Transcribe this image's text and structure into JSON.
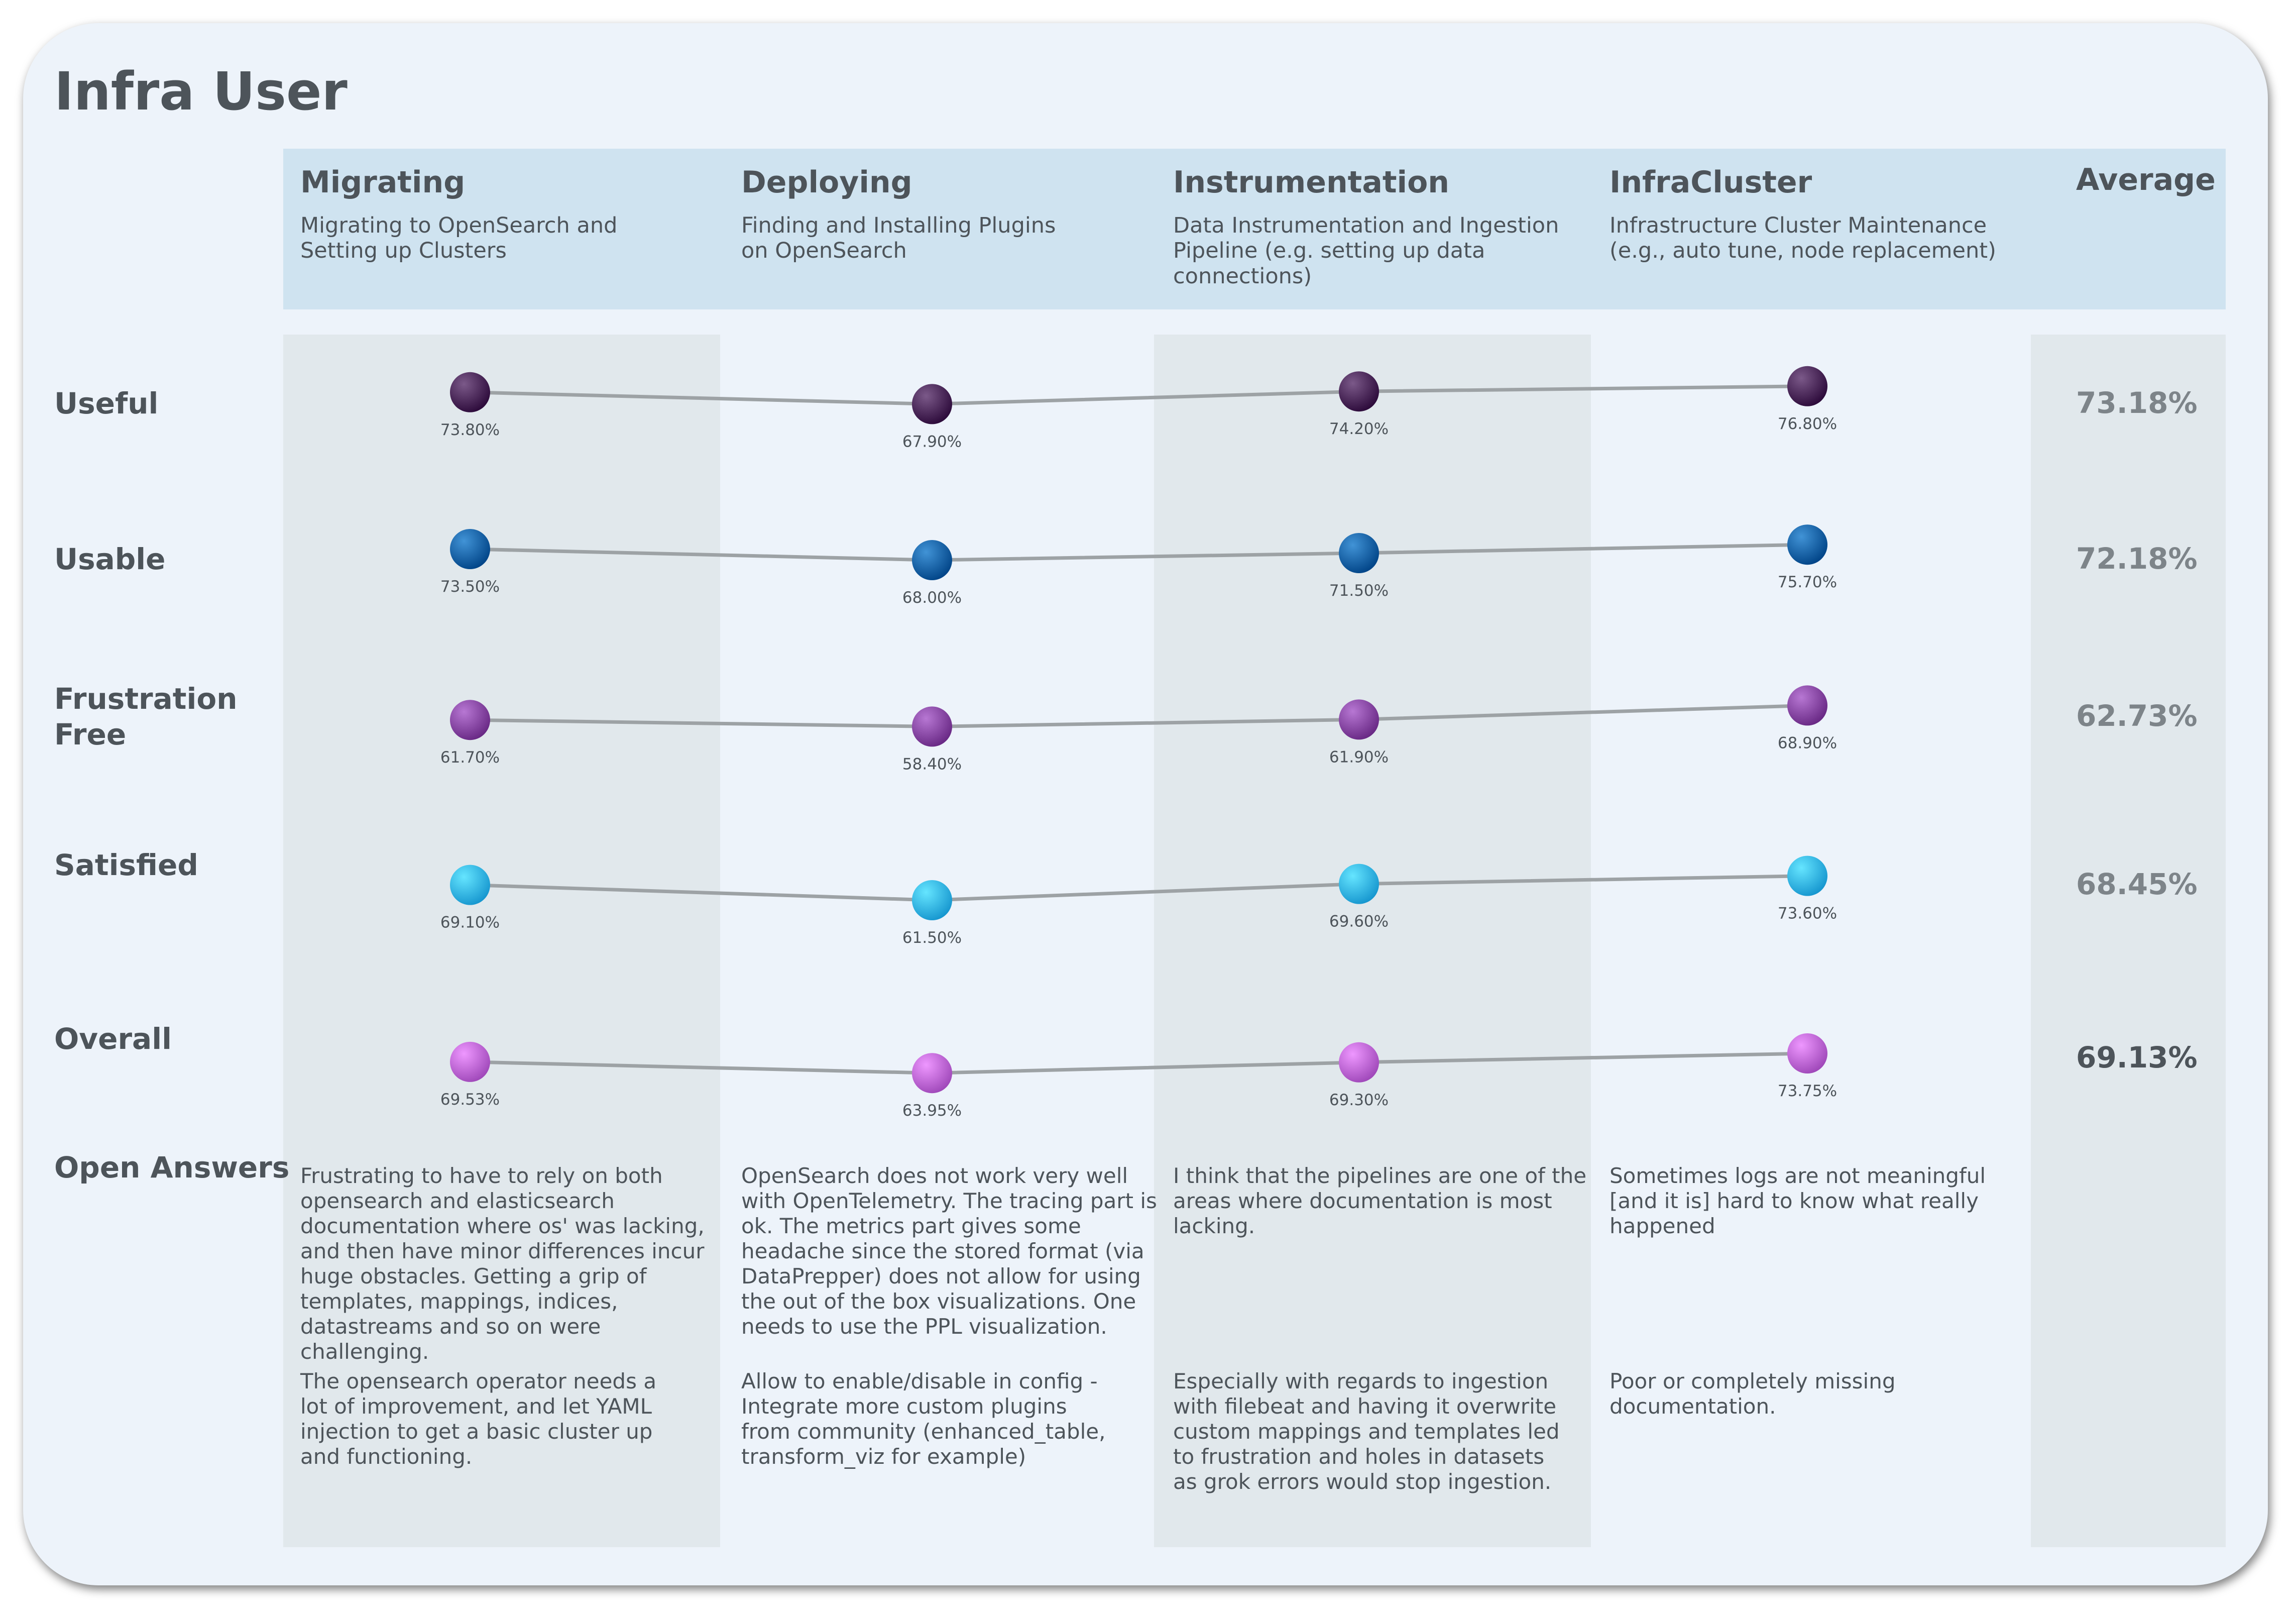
{
  "title": "Infra User",
  "columns": [
    {
      "title": "Migrating",
      "subtitle_lines": [
        "Migrating to OpenSearch and",
        "Setting up Clusters"
      ]
    },
    {
      "title": "Deploying",
      "subtitle_lines": [
        "Finding and Installing Plugins",
        "on OpenSearch"
      ]
    },
    {
      "title": "Instrumentation",
      "subtitle_lines": [
        "Data Instrumentation and Ingestion",
        "Pipeline (e.g. setting up data connections)"
      ]
    },
    {
      "title": "InfraCluster",
      "subtitle_lines": [
        "Infrastructure Cluster Maintenance",
        "(e.g., auto tune, node replacement)"
      ]
    }
  ],
  "average_label": "Average",
  "open_answers_label": "Open Answers",
  "chart_data": {
    "type": "line",
    "categories": [
      "Migrating",
      "Deploying",
      "Instrumentation",
      "InfraCluster"
    ],
    "series": [
      {
        "name": "Useful",
        "values": [
          73.8,
          67.9,
          74.2,
          76.8
        ],
        "labels": [
          "73.80%",
          "67.90%",
          "74.20%",
          "76.80%"
        ],
        "average": "73.18%",
        "color": "#3f1d4d"
      },
      {
        "name": "Usable",
        "values": [
          73.5,
          68.0,
          71.5,
          75.7
        ],
        "labels": [
          "73.50%",
          "68.00%",
          "71.50%",
          "75.70%"
        ],
        "average": "72.18%",
        "color": "#05579a"
      },
      {
        "name": "Frustration Free",
        "values": [
          61.7,
          58.4,
          61.9,
          68.9
        ],
        "labels": [
          "61.70%",
          "58.40%",
          "61.90%",
          "68.90%"
        ],
        "average": "62.73%",
        "color": "#7b3b97"
      },
      {
        "name": "Satisfied",
        "values": [
          69.1,
          61.5,
          69.6,
          73.6
        ],
        "labels": [
          "69.10%",
          "61.50%",
          "69.60%",
          "73.60%"
        ],
        "average": "68.45%",
        "color": "#29a9e2"
      },
      {
        "name": "Overall",
        "values": [
          69.53,
          63.95,
          69.3,
          73.75
        ],
        "labels": [
          "69.53%",
          "63.95%",
          "69.30%",
          "73.75%"
        ],
        "average": "69.13%",
        "color": "#b25bcc"
      }
    ],
    "line_color": "#9da2a5"
  },
  "open_answers": [
    {
      "first": [
        "Frustrating to have to rely on both",
        "opensearch and elasticsearch",
        "documentation where os' was lacking,",
        "and then have minor differences incur",
        "huge obstacles. Getting a grip of",
        "templates, mappings, indices,",
        "datastreams and so on were challenging."
      ],
      "second": [
        "The opensearch operator needs a",
        "lot of improvement, and let YAML",
        "injection to get a basic cluster up",
        "and functioning."
      ]
    },
    {
      "first": [
        "OpenSearch does not work very well",
        "with OpenTelemetry. The tracing part is",
        "ok. The metrics part gives some",
        "headache since the stored format (via",
        "DataPrepper) does not allow for using",
        "the out of the box visualizations. One",
        "needs to use the PPL visualization."
      ],
      "second": [
        "Allow to enable/disable in config -",
        "Integrate more custom plugins",
        "from community (enhanced_table,",
        "transform_viz for example)"
      ]
    },
    {
      "first": [
        "I think that the pipelines are one of the",
        "areas where documentation is most",
        "lacking."
      ],
      "second": [
        "Especially with regards to ingestion",
        "with filebeat and having it overwrite",
        "custom mappings and templates led",
        "to frustration and holes in datasets",
        "as grok errors would stop ingestion."
      ]
    },
    {
      "first": [
        "Sometimes logs are not meaningful",
        "[and it is] hard to know what really",
        "happened"
      ],
      "second": [
        "Poor or completely missing",
        "documentation."
      ]
    }
  ]
}
